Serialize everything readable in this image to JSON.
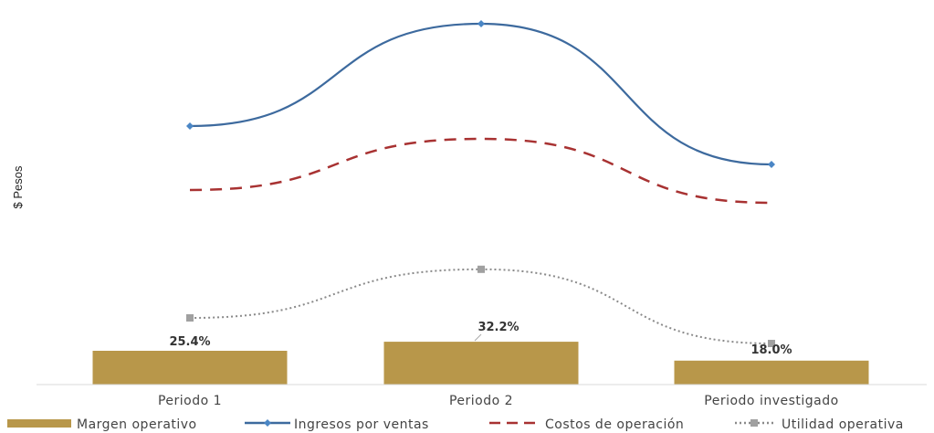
{
  "chart_data": {
    "type": "bar+line",
    "ylabel": "$ Pesos",
    "categories": [
      "Periodo 1",
      "Periodo 2",
      "Periodo investigado"
    ],
    "bars": {
      "name": "Margen operativo",
      "values": [
        25.4,
        32.2,
        18.0
      ],
      "labels": [
        "25.4%",
        "32.2%",
        "18.0%"
      ],
      "color": "#b8974a"
    },
    "lines": [
      {
        "name": "Ingresos por ventas",
        "values": [
          100,
          140,
          85
        ],
        "color": "#3d6a9e",
        "style": "solid",
        "marker": "diamond"
      },
      {
        "name": "Costos de operación",
        "values": [
          75,
          95,
          70
        ],
        "color": "#a83232",
        "style": "dashed",
        "marker": "none"
      },
      {
        "name": "Utilidad operativa",
        "values": [
          25,
          44,
          15
        ],
        "color": "#8a8a8a",
        "style": "dotted",
        "marker": "square"
      }
    ],
    "grid": false,
    "legend_position": "bottom",
    "note": "Y axis has no numeric tick labels; line values are relative estimates."
  }
}
